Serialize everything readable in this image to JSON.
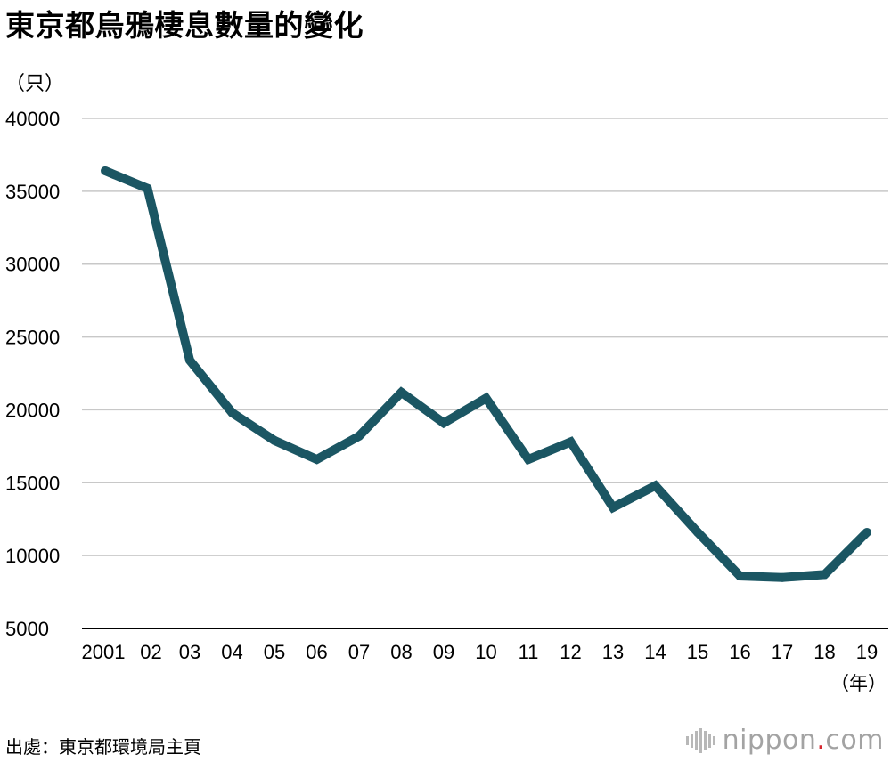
{
  "chart_data": {
    "type": "line",
    "title": "東京都烏鴉棲息數量的變化",
    "ylabel": "（只）",
    "xlabel": "（年）",
    "ylim": [
      5000,
      40000
    ],
    "yticks": [
      "40000",
      "35000",
      "30000",
      "25000",
      "20000",
      "15000",
      "10000",
      "5000"
    ],
    "ytick_values": [
      40000,
      35000,
      30000,
      25000,
      20000,
      15000,
      10000,
      5000
    ],
    "categories": [
      "2001",
      "02",
      "03",
      "04",
      "05",
      "06",
      "07",
      "08",
      "09",
      "10",
      "11",
      "12",
      "13",
      "14",
      "15",
      "16",
      "17",
      "18",
      "19"
    ],
    "series": [
      {
        "values": [
          36400,
          35200,
          23400,
          19800,
          17900,
          16600,
          18200,
          21200,
          19100,
          20800,
          16600,
          17800,
          13300,
          14800,
          11600,
          8600,
          8500,
          8700,
          11600
        ]
      }
    ],
    "grid": true,
    "line_color": "#1b5663",
    "source": "出處：東京都環境局主頁"
  },
  "logo": {
    "text_main": "nippon",
    "text_dot": ".",
    "text_tld": "com"
  }
}
